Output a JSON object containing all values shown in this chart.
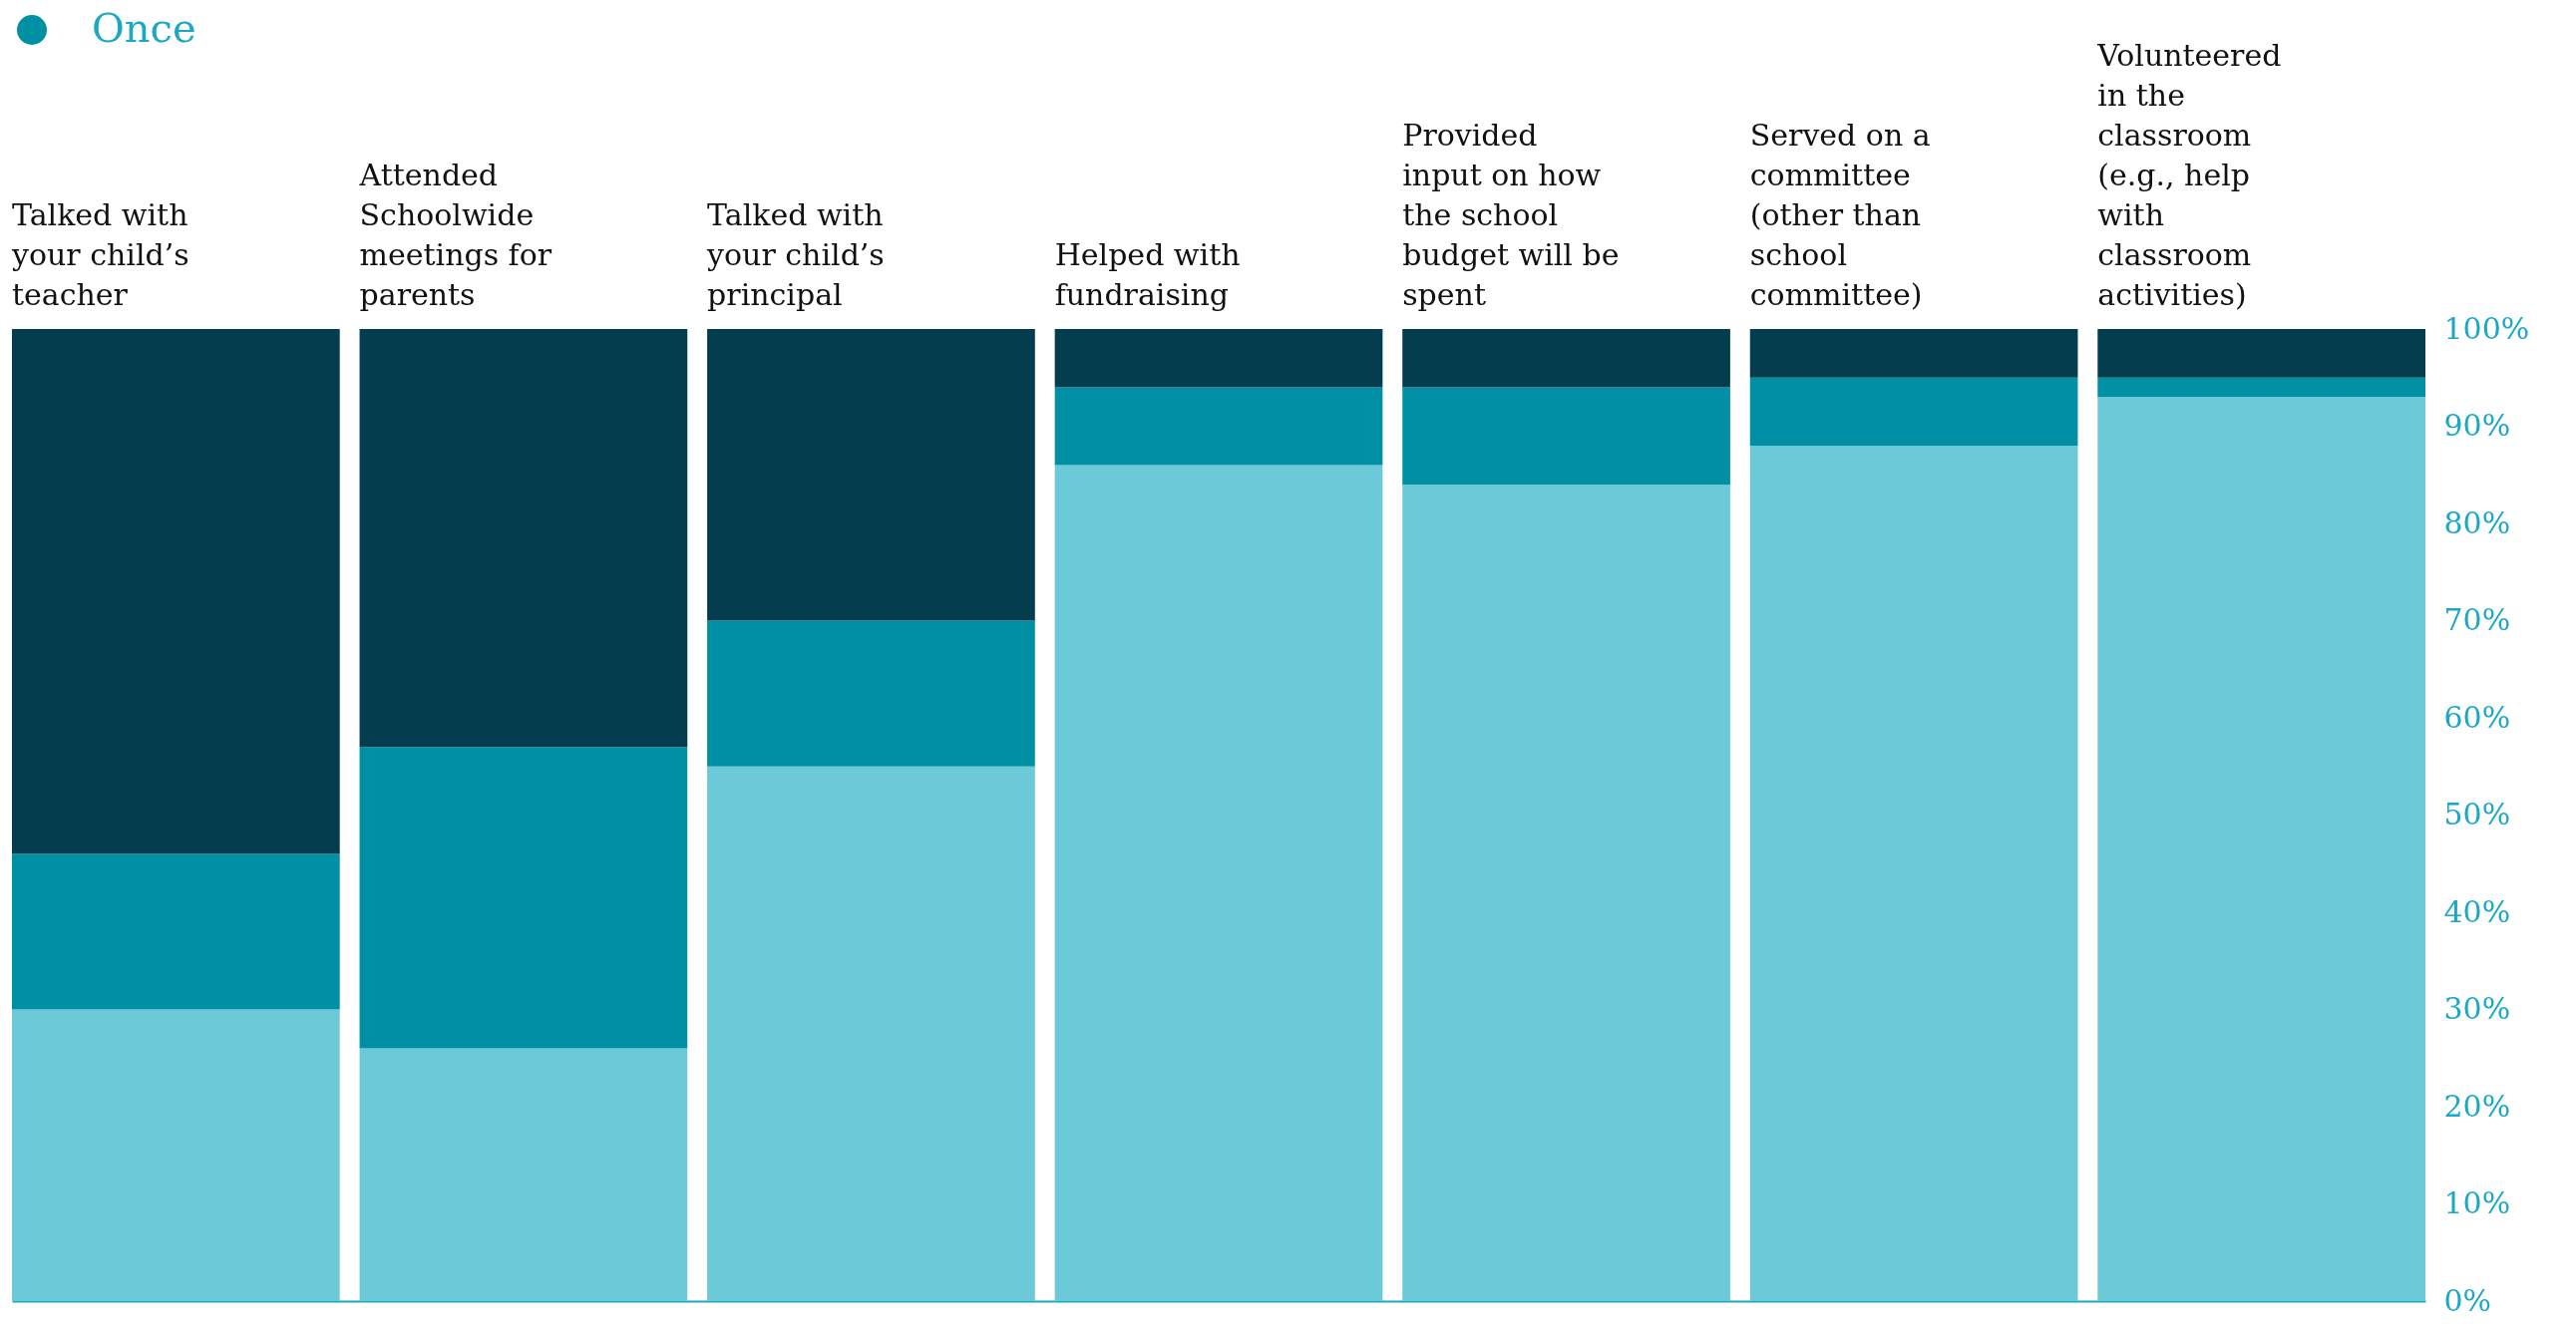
{
  "chart_data": {
    "type": "bar",
    "stacked": true,
    "categories": [
      "Talked with\nyour child’s\nteacher",
      "Attended\nSchoolwide\nmeetings for\nparents",
      "Talked with\nyour child’s\nprincipal",
      "Helped with\nfundraising",
      "Provided\ninput on how\nthe school\nbudget will be\nspent",
      "Served on a\ncommittee\n(other than\nschool\ncommittee)",
      "Volunteered\nin the\nclassroom\n(e.g., help\nwith\nclassroom\nactivities)"
    ],
    "series": [
      {
        "color": "#6ccad8",
        "values": [
          30,
          26,
          55,
          86,
          84,
          88,
          93
        ]
      },
      {
        "name": "Once",
        "color": "#0090a5",
        "values": [
          16,
          31,
          15,
          8,
          10,
          7,
          2
        ]
      },
      {
        "color": "#033d4e",
        "values": [
          54,
          43,
          30,
          6,
          6,
          5,
          5
        ]
      }
    ],
    "ylim": [
      0,
      100
    ],
    "yticks": [
      {
        "value": 0,
        "label": "0%"
      },
      {
        "value": 10,
        "label": "10%"
      },
      {
        "value": 20,
        "label": "20%"
      },
      {
        "value": 30,
        "label": "30%"
      },
      {
        "value": 40,
        "label": "40%"
      },
      {
        "value": 50,
        "label": "50%"
      },
      {
        "value": 60,
        "label": "60%"
      },
      {
        "value": 70,
        "label": "70%"
      },
      {
        "value": 80,
        "label": "80%"
      },
      {
        "value": 90,
        "label": "90%"
      },
      {
        "value": 100,
        "label": "100%"
      }
    ],
    "legend": "top left",
    "grid": false
  }
}
